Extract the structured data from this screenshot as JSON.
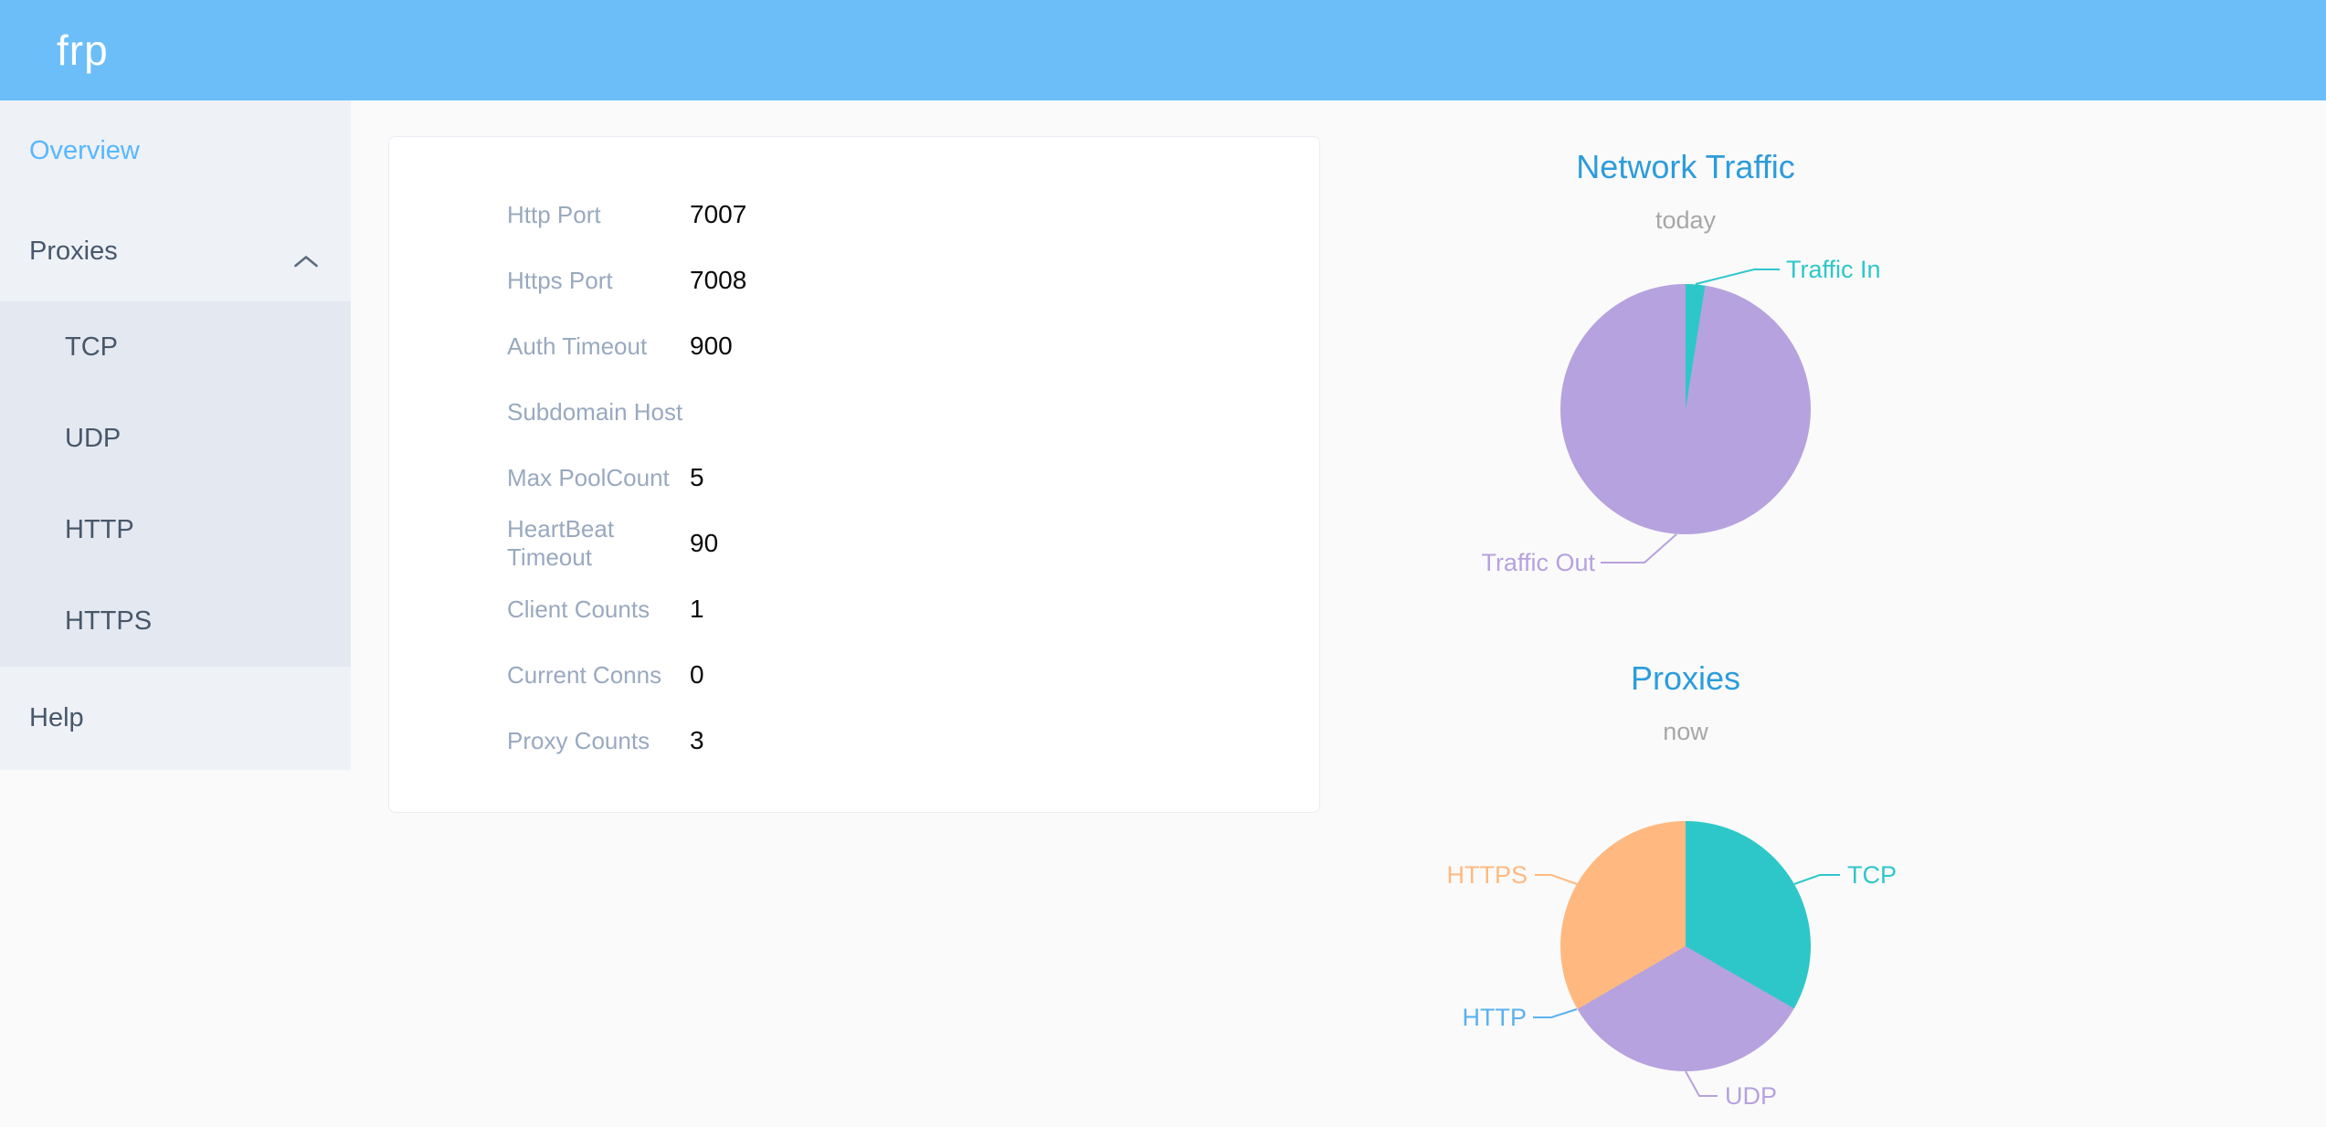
{
  "header": {
    "logo": "frp"
  },
  "sidebar": {
    "items": [
      {
        "label": "Overview",
        "active": true
      },
      {
        "label": "Proxies",
        "expanded": true,
        "children": [
          "TCP",
          "UDP",
          "HTTP",
          "HTTPS"
        ]
      },
      {
        "label": "Help"
      }
    ]
  },
  "server_info": {
    "rows": [
      {
        "label": "Http Port",
        "value": "7007"
      },
      {
        "label": "Https Port",
        "value": "7008"
      },
      {
        "label": "Auth Timeout",
        "value": "900"
      },
      {
        "label": "Subdomain Host",
        "value": ""
      },
      {
        "label": "Max PoolCount",
        "value": "5"
      },
      {
        "label": "HeartBeat Timeout",
        "value": "90"
      },
      {
        "label": "Client Counts",
        "value": "1"
      },
      {
        "label": "Current Conns",
        "value": "0"
      },
      {
        "label": "Proxy Counts",
        "value": "3"
      }
    ]
  },
  "chart_data": [
    {
      "type": "pie",
      "title": "Network Traffic",
      "subtitle": "today",
      "legend_position": "callout-labels",
      "slices": [
        {
          "label": "Traffic In",
          "percent": 2.5,
          "color": "#2ec7c9"
        },
        {
          "label": "Traffic Out",
          "percent": 97.5,
          "color": "#b6a2de"
        }
      ]
    },
    {
      "type": "pie",
      "title": "Proxies",
      "subtitle": "now",
      "legend_position": "callout-labels",
      "slices": [
        {
          "label": "TCP",
          "percent": 33.3,
          "value": 1,
          "color": "#2ec7c9"
        },
        {
          "label": "UDP",
          "percent": 33.3,
          "value": 1,
          "color": "#b6a2de"
        },
        {
          "label": "HTTP",
          "percent": 0,
          "value": 0,
          "color": "#5ab1ef"
        },
        {
          "label": "HTTPS",
          "percent": 33.4,
          "value": 1,
          "color": "#ffb980"
        }
      ]
    }
  ],
  "ui_colors": {
    "header_bg": "#6cbef9",
    "sidebar_bg": "#eef1f6",
    "submenu_bg": "#e4e8f1",
    "sidebar_text": "#48576a",
    "active_link": "#58b7ff",
    "chart_title_blue": "#2d9cdb",
    "card_label_gray": "#99a9bf",
    "page_bg": "#fafafa"
  }
}
